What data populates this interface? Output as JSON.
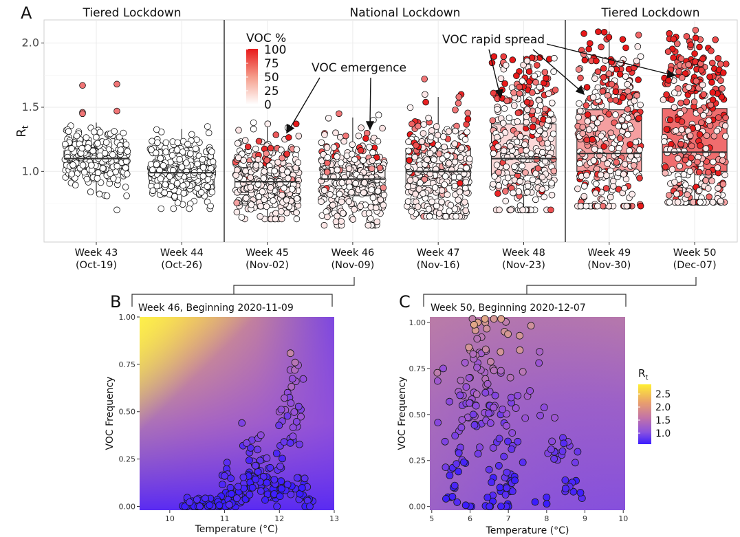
{
  "panel_letters": {
    "a": "A",
    "b": "B",
    "c": "C"
  },
  "panel_a": {
    "sections": [
      "Tiered Lockdown",
      "National Lockdown",
      "Tiered Lockdown"
    ],
    "ylabel_main": "R",
    "ylabel_sub": "t",
    "ytick_labels": [
      "1.0",
      "1.5",
      "2.0"
    ],
    "category_labels": [
      {
        "week": "Week 43",
        "date": "(Oct-19)"
      },
      {
        "week": "Week 44",
        "date": "(Oct-26)"
      },
      {
        "week": "Week 45",
        "date": "(Nov-02)"
      },
      {
        "week": "Week 46",
        "date": "(Nov-09)"
      },
      {
        "week": "Week 47",
        "date": "(Nov-16)"
      },
      {
        "week": "Week 48",
        "date": "(Nov-23)"
      },
      {
        "week": "Week 49",
        "date": "(Nov-30)"
      },
      {
        "week": "Week 50",
        "date": "(Dec-07)"
      }
    ],
    "legend_title": "VOC %",
    "legend_ticks": [
      "100",
      "75",
      "50",
      "25",
      "0"
    ],
    "annotation_emergence": "VOC emergence",
    "annotation_spread": "VOC rapid spread"
  },
  "panel_b": {
    "title": "Week 46, Beginning 2020-11-09",
    "xlabel": "Temperature (°C)",
    "ylabel": "VOC Frequency",
    "xtick_labels": [
      "10",
      "11",
      "12",
      "13"
    ],
    "ytick_labels": [
      "0.00",
      "0.25",
      "0.50",
      "0.75",
      "1.00"
    ]
  },
  "panel_c": {
    "title": "Week 50, Beginning 2020-12-07",
    "xlabel": "Temperature (°C)",
    "ylabel": "VOC Frequency",
    "xtick_labels": [
      "5",
      "6",
      "7",
      "8",
      "9",
      "10"
    ],
    "ytick_labels": [
      "0.00",
      "0.25",
      "0.50",
      "0.75",
      "1.00"
    ]
  },
  "rt_legend": {
    "title_main": "R",
    "title_sub": "t",
    "tick_labels": [
      "2.5",
      "2.0",
      "1.5",
      "1.0"
    ]
  },
  "colors": {
    "voc_high": "#e8191a",
    "voc_low": "#ffffff",
    "rt_low": "#3a1cff",
    "rt_mid": "#9a52d6",
    "rt_high": "#ffee33"
  },
  "chart_data": [
    {
      "type": "box",
      "title": "",
      "xlabel": "",
      "ylabel": "Rt",
      "ylim": [
        0.45,
        2.18
      ],
      "categories": [
        "Week 43 (Oct-19)",
        "Week 44 (Oct-26)",
        "Week 45 (Nov-02)",
        "Week 46 (Nov-09)",
        "Week 47 (Nov-16)",
        "Week 48 (Nov-23)",
        "Week 49 (Nov-30)",
        "Week 50 (Dec-07)"
      ],
      "boxes": [
        {
          "q1": 1.01,
          "median": 1.1,
          "q3": 1.16,
          "whisker_low": 0.83,
          "whisker_high": 1.38,
          "voc_pct": 0
        },
        {
          "q1": 0.9,
          "median": 0.99,
          "q3": 1.06,
          "whisker_low": 0.73,
          "whisker_high": 1.33,
          "voc_pct": 0
        },
        {
          "q1": 0.82,
          "median": 0.92,
          "q3": 1.03,
          "whisker_low": 0.65,
          "whisker_high": 1.35,
          "voc_pct": 1
        },
        {
          "q1": 0.81,
          "median": 0.94,
          "q3": 1.06,
          "whisker_low": 0.6,
          "whisker_high": 1.42,
          "voc_pct": 2
        },
        {
          "q1": 0.89,
          "median": 1.0,
          "q3": 1.18,
          "whisker_low": 0.67,
          "whisker_high": 1.58,
          "voc_pct": 4
        },
        {
          "q1": 0.97,
          "median": 1.1,
          "q3": 1.37,
          "whisker_low": 0.72,
          "whisker_high": 1.9,
          "voc_pct": 10
        },
        {
          "q1": 1.0,
          "median": 1.14,
          "q3": 1.48,
          "whisker_low": 0.75,
          "whisker_high": 2.09,
          "voc_pct": 25
        },
        {
          "q1": 1.0,
          "median": 1.15,
          "q3": 1.49,
          "whisker_low": 0.78,
          "whisker_high": 2.08,
          "voc_pct": 38
        }
      ],
      "outliers": [
        {
          "category": 0,
          "values": [
            1.67,
            1.68,
            1.46,
            1.47,
            1.45,
            0.7
          ]
        },
        {
          "category": 2,
          "values": [
            1.38,
            1.34,
            1.33
          ]
        },
        {
          "category": 3,
          "values": [
            1.45,
            1.4
          ]
        },
        {
          "category": 4,
          "values": [
            1.72,
            1.58
          ]
        }
      ],
      "sections": [
        {
          "label": "Tiered Lockdown",
          "categories": [
            0,
            1
          ]
        },
        {
          "label": "National Lockdown",
          "categories": [
            2,
            3,
            4,
            5
          ]
        },
        {
          "label": "Tiered Lockdown",
          "categories": [
            6,
            7
          ]
        }
      ],
      "points_note_lineage": "each box overlaid with ~300-400 jittered points colored by VOC %"
    },
    {
      "type": "scatter",
      "title": "Week 46, Beginning 2020-11-09",
      "xlabel": "Temperature (°C)",
      "ylabel": "VOC Frequency",
      "xlim": [
        9.45,
        13.0
      ],
      "ylim": [
        -0.02,
        1.0
      ],
      "background": "Rt surface gradient",
      "points": [
        [
          10.3,
          0.0
        ],
        [
          10.4,
          0.01
        ],
        [
          10.5,
          0.0
        ],
        [
          10.6,
          0.02
        ],
        [
          10.7,
          0.0
        ],
        [
          10.8,
          0.01
        ],
        [
          10.9,
          0.0
        ],
        [
          11.0,
          0.02
        ],
        [
          11.1,
          0.03
        ],
        [
          11.2,
          0.0
        ],
        [
          11.25,
          0.05
        ],
        [
          11.3,
          0.08
        ],
        [
          11.35,
          0.12
        ],
        [
          11.4,
          0.04
        ],
        [
          11.45,
          0.18
        ],
        [
          11.5,
          0.1
        ],
        [
          11.55,
          0.22
        ],
        [
          11.6,
          0.3
        ],
        [
          11.65,
          0.15
        ],
        [
          11.7,
          0.25
        ],
        [
          11.75,
          0.08
        ],
        [
          11.8,
          0.2
        ],
        [
          11.85,
          0.05
        ],
        [
          11.9,
          0.12
        ],
        [
          11.95,
          0.28
        ],
        [
          12.0,
          0.5
        ],
        [
          12.05,
          0.45
        ],
        [
          12.1,
          0.1
        ],
        [
          12.15,
          0.6
        ],
        [
          12.2,
          0.72
        ],
        [
          12.25,
          0.35
        ],
        [
          12.28,
          0.72
        ],
        [
          12.3,
          0.66
        ],
        [
          12.35,
          0.15
        ],
        [
          12.4,
          0.05
        ],
        [
          12.45,
          0.12
        ],
        [
          12.55,
          0.0
        ],
        [
          11.0,
          0.16
        ],
        [
          11.05,
          0.17
        ],
        [
          11.5,
          0.35
        ]
      ]
    },
    {
      "type": "scatter",
      "title": "Week 50, Beginning 2020-12-07",
      "xlabel": "Temperature (°C)",
      "ylabel": "VOC Frequency",
      "xlim": [
        4.95,
        10.05
      ],
      "ylim": [
        -0.02,
        1.03
      ],
      "background": "Rt surface gradient",
      "points": [
        [
          5.3,
          0.75
        ],
        [
          5.5,
          0.2
        ],
        [
          5.6,
          0.1
        ],
        [
          5.7,
          0.3
        ],
        [
          5.8,
          0.55
        ],
        [
          5.9,
          0.65
        ],
        [
          6.0,
          0.7
        ],
        [
          6.0,
          0.85
        ],
        [
          6.1,
          0.62
        ],
        [
          6.2,
          0.78
        ],
        [
          6.2,
          1.0
        ],
        [
          6.3,
          0.92
        ],
        [
          6.3,
          0.45
        ],
        [
          6.4,
          1.0
        ],
        [
          6.5,
          0.55
        ],
        [
          6.5,
          0.2
        ],
        [
          6.6,
          0.75
        ],
        [
          6.7,
          0.35
        ],
        [
          6.8,
          0.5
        ],
        [
          6.9,
          0.95
        ],
        [
          7.0,
          0.15
        ],
        [
          7.1,
          0.4
        ],
        [
          7.3,
          0.85
        ],
        [
          7.5,
          0.6
        ],
        [
          7.8,
          0.78
        ],
        [
          8.0,
          0.05
        ],
        [
          8.2,
          0.3
        ],
        [
          8.5,
          0.1
        ],
        [
          8.6,
          0.33
        ],
        [
          8.7,
          0.08
        ],
        [
          6.0,
          0.0
        ],
        [
          6.5,
          0.0
        ],
        [
          7.0,
          0.0
        ],
        [
          5.5,
          0.05
        ],
        [
          6.8,
          0.1
        ]
      ]
    }
  ]
}
